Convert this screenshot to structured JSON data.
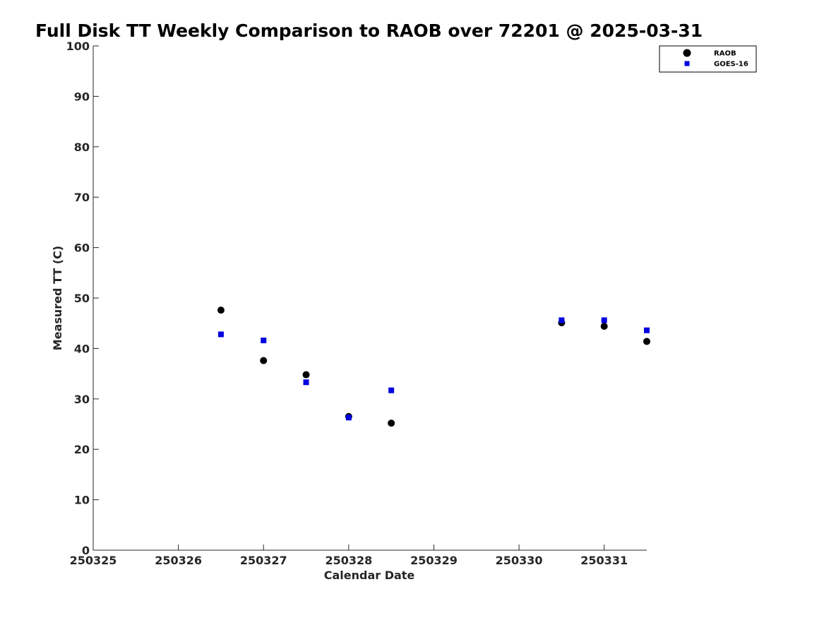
{
  "chart_data": {
    "type": "scatter",
    "title": "Full Disk TT Weekly Comparison to RAOB over 72201 @ 2025-03-31",
    "xlabel": "Calendar Date",
    "ylabel": "Measured TT (C)",
    "x_ticks": [
      "250325",
      "250326",
      "250327",
      "250328",
      "250329",
      "250330",
      "250331"
    ],
    "y_ticks": [
      "0",
      "10",
      "20",
      "30",
      "40",
      "50",
      "60",
      "70",
      "80",
      "90",
      "100"
    ],
    "xlim": [
      0,
      6.5
    ],
    "ylim": [
      0,
      100
    ],
    "grid": false,
    "legend": "top-right",
    "series": [
      {
        "name": "RAOB",
        "marker": "circle",
        "color": "#000000",
        "x": [
          1.5,
          2.0,
          2.5,
          3.0,
          3.5,
          5.5,
          6.0,
          6.5
        ],
        "y": [
          47.6,
          37.6,
          34.8,
          26.5,
          25.2,
          45.1,
          44.4,
          41.4
        ]
      },
      {
        "name": "GOES-16",
        "marker": "square",
        "color": "#0000e0",
        "x": [
          1.5,
          2.0,
          2.5,
          3.0,
          3.5,
          5.5,
          6.0,
          6.5
        ],
        "y": [
          42.8,
          41.6,
          33.3,
          26.3,
          31.7,
          45.6,
          45.6,
          43.6
        ]
      }
    ]
  }
}
